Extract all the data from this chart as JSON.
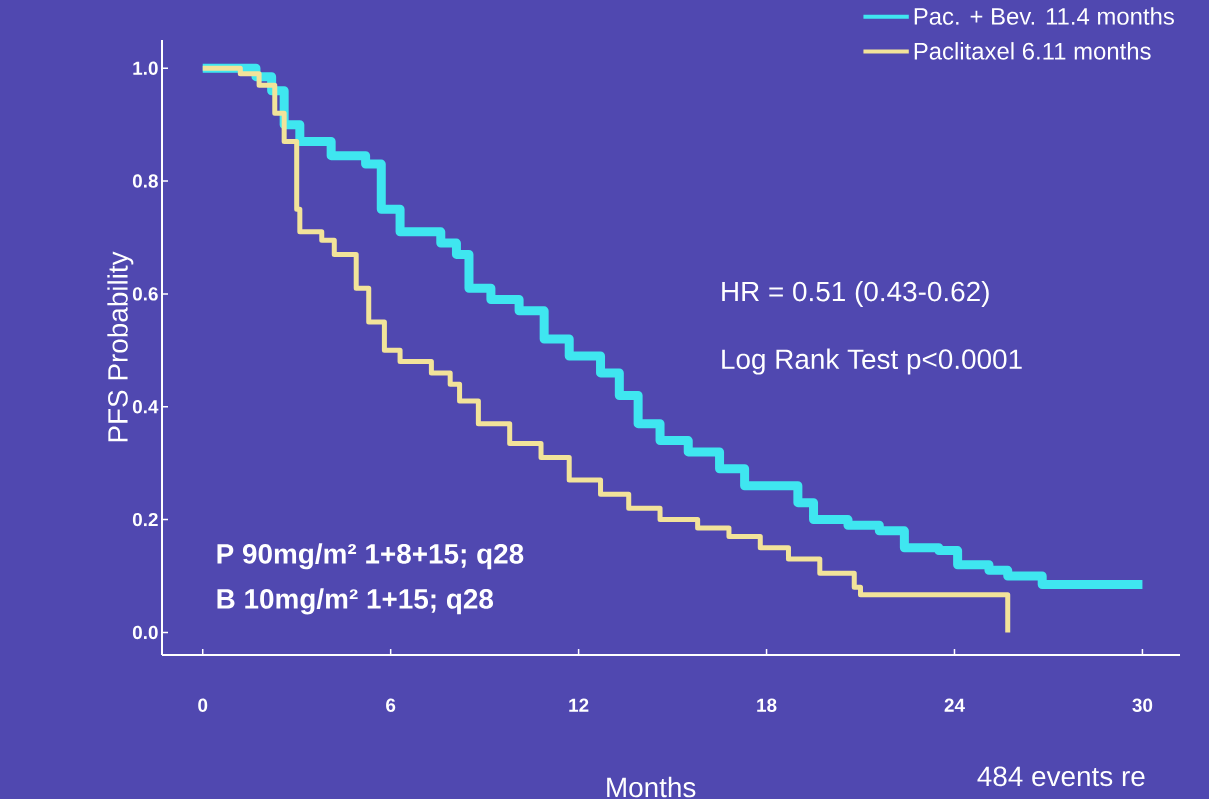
{
  "chart_data": {
    "type": "step",
    "xlabel": "Months",
    "ylabel": "PFS Probability",
    "xlim": [
      -1.3,
      31.2
    ],
    "ylim": [
      -0.04,
      1.05
    ],
    "xticks": [
      0,
      6,
      12,
      18,
      24,
      30
    ],
    "yticks": [
      {
        "value": 0,
        "label": "0.0"
      },
      {
        "value": 0.2,
        "label": "0.2"
      },
      {
        "value": 0.4,
        "label": "0.4"
      },
      {
        "value": 0.6,
        "label": "0.6"
      },
      {
        "value": 0.8,
        "label": "0.8"
      },
      {
        "value": 1,
        "label": "1.0"
      }
    ],
    "grid": false,
    "legend": "top right",
    "series": [
      {
        "name": "Pac. + Bev.  11.4 months",
        "color": "#3fe6f0",
        "x": [
          0,
          1.7,
          2.2,
          2.6,
          3.1,
          4.1,
          5.2,
          5.7,
          6.3,
          7.6,
          8.1,
          8.5,
          9.2,
          10.1,
          10.9,
          11.7,
          12.7,
          13.3,
          13.9,
          14.6,
          15.5,
          16.5,
          17.3,
          18.1,
          19.0,
          19.5,
          20.6,
          21.6,
          22.4,
          23.5,
          24.1,
          25.1,
          25.7,
          26.8,
          30
        ],
        "values": [
          1.0,
          0.985,
          0.96,
          0.9,
          0.87,
          0.845,
          0.83,
          0.75,
          0.71,
          0.69,
          0.67,
          0.61,
          0.59,
          0.57,
          0.52,
          0.49,
          0.46,
          0.42,
          0.37,
          0.34,
          0.32,
          0.29,
          0.26,
          0.26,
          0.23,
          0.2,
          0.19,
          0.18,
          0.15,
          0.145,
          0.12,
          0.11,
          0.1,
          0.085,
          0.085
        ]
      },
      {
        "name": "Paclitaxel    6.11 months",
        "color": "#f2e39a",
        "x": [
          0,
          1.2,
          1.8,
          2.3,
          2.6,
          3.0,
          3.1,
          3.8,
          4.2,
          4.9,
          5.3,
          5.8,
          6.3,
          7.3,
          7.9,
          8.2,
          8.8,
          9.8,
          10.8,
          11.7,
          12.7,
          13.6,
          14.6,
          15.8,
          16.8,
          17.8,
          18.7,
          19.7,
          20.8,
          21.0,
          25.7,
          25.7
        ],
        "values": [
          1.0,
          0.99,
          0.97,
          0.92,
          0.87,
          0.75,
          0.71,
          0.695,
          0.67,
          0.61,
          0.55,
          0.5,
          0.48,
          0.46,
          0.44,
          0.41,
          0.37,
          0.335,
          0.31,
          0.27,
          0.245,
          0.22,
          0.2,
          0.185,
          0.17,
          0.15,
          0.13,
          0.105,
          0.08,
          0.067,
          0.067,
          0.0
        ]
      }
    ],
    "annotations": [
      "HR = 0.51 (0.43-0.62)",
      "Log Rank Test   p<0.0001",
      "P 90mg/m² 1+8+15; q28",
      "B 10mg/m² 1+15; q28",
      "484 events re"
    ]
  }
}
